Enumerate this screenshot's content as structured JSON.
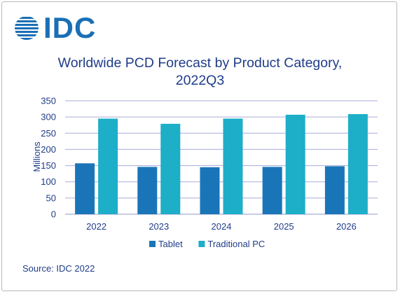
{
  "logo": {
    "text": "IDC",
    "brand_color": "#1a6fb5"
  },
  "source": "Source: IDC 2022",
  "chart_data": {
    "type": "bar",
    "title_line1": "Worldwide PCD Forecast by Product Category,",
    "title_line2": "2022Q3",
    "ylabel": "Millions",
    "xlabel": "",
    "categories": [
      "2022",
      "2023",
      "2024",
      "2025",
      "2026"
    ],
    "series": [
      {
        "name": "Tablet",
        "color": "#1a75b8",
        "values": [
          157,
          146,
          145,
          146,
          148
        ]
      },
      {
        "name": "Traditional PC",
        "color": "#1daec8",
        "values": [
          295,
          279,
          295,
          307,
          309
        ]
      }
    ],
    "ylim": [
      0,
      350
    ],
    "yticks": [
      0,
      50,
      100,
      150,
      200,
      250,
      300,
      350
    ],
    "grid": true,
    "legend_position": "bottom"
  }
}
